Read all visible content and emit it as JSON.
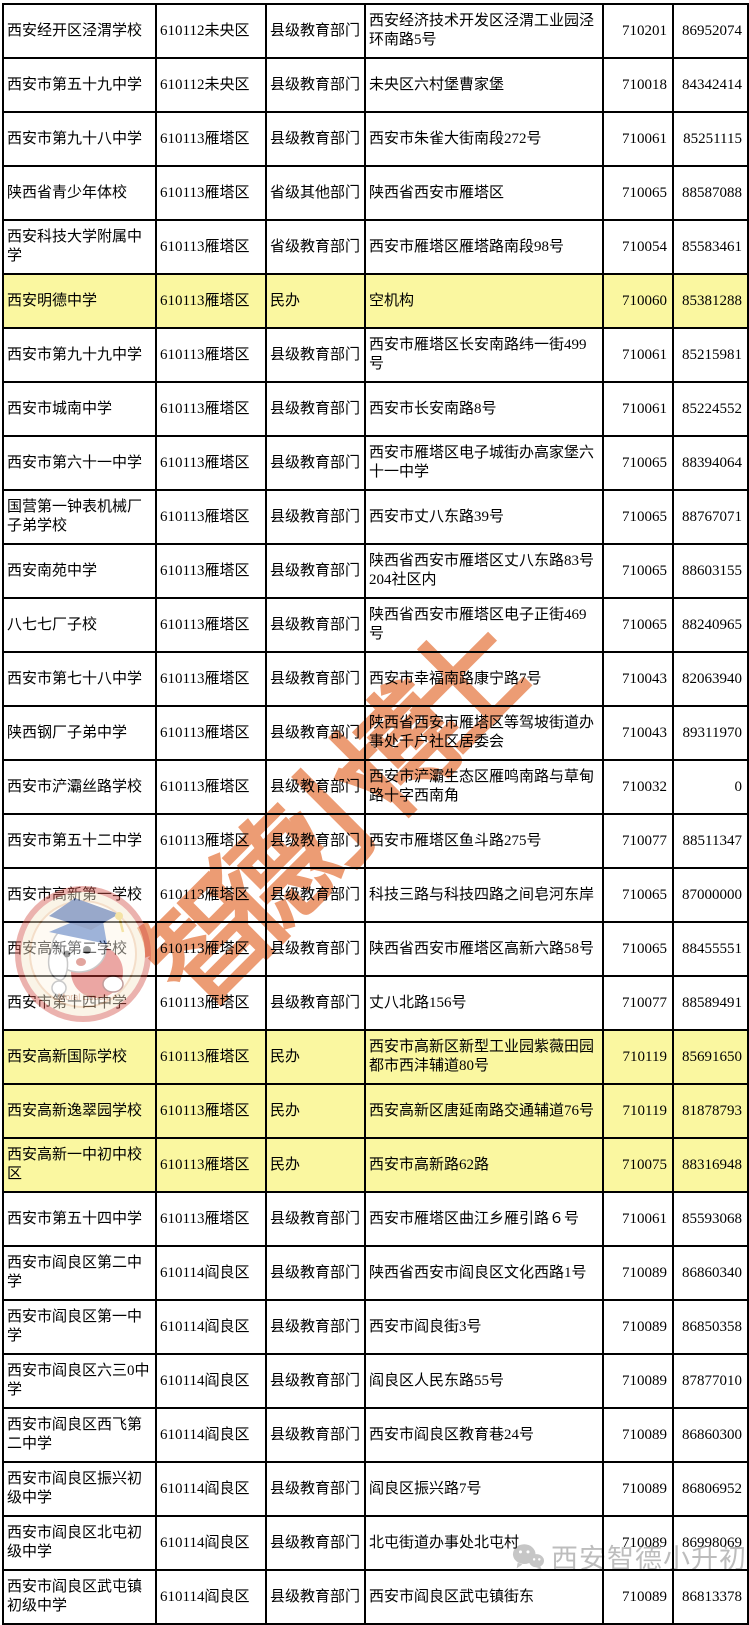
{
  "table": {
    "column_keys": [
      "school_name",
      "district_code",
      "management",
      "address",
      "postal_code",
      "phone"
    ],
    "rows": [
      {
        "school_name": "西安经开区泾渭学校",
        "district_code": "610112未央区",
        "management": "县级教育部门",
        "address": "西安经济技术开发区泾渭工业园泾环南路5号",
        "postal_code": "710201",
        "phone": "86952074",
        "highlighted": false
      },
      {
        "school_name": "西安市第五十九中学",
        "district_code": "610112未央区",
        "management": "县级教育部门",
        "address": "未央区六村堡曹家堡",
        "postal_code": "710018",
        "phone": "84342414",
        "highlighted": false
      },
      {
        "school_name": "西安市第九十八中学",
        "district_code": "610113雁塔区",
        "management": "县级教育部门",
        "address": "西安市朱雀大街南段272号",
        "postal_code": "710061",
        "phone": "85251115",
        "highlighted": false
      },
      {
        "school_name": "陕西省青少年体校",
        "district_code": "610113雁塔区",
        "management": "省级其他部门",
        "address": "陕西省西安市雁塔区",
        "postal_code": "710065",
        "phone": "88587088",
        "highlighted": false
      },
      {
        "school_name": "西安科技大学附属中学",
        "district_code": "610113雁塔区",
        "management": "省级教育部门",
        "address": "西安市雁塔区雁塔路南段98号",
        "postal_code": "710054",
        "phone": "85583461",
        "highlighted": false
      },
      {
        "school_name": "西安明德中学",
        "district_code": "610113雁塔区",
        "management": "民办",
        "address": "空机构",
        "postal_code": "710060",
        "phone": "85381288",
        "highlighted": true
      },
      {
        "school_name": "西安市第九十九中学",
        "district_code": "610113雁塔区",
        "management": "县级教育部门",
        "address": "西安市雁塔区长安南路纬一街499号",
        "postal_code": "710061",
        "phone": "85215981",
        "highlighted": false
      },
      {
        "school_name": "西安市城南中学",
        "district_code": "610113雁塔区",
        "management": "县级教育部门",
        "address": "西安市长安南路8号",
        "postal_code": "710061",
        "phone": "85224552",
        "highlighted": false
      },
      {
        "school_name": "西安市第六十一中学",
        "district_code": "610113雁塔区",
        "management": "县级教育部门",
        "address": "西安市雁塔区电子城街办高家堡六十一中学",
        "postal_code": "710065",
        "phone": "88394064",
        "highlighted": false
      },
      {
        "school_name": "国营第一钟表机械厂子弟学校",
        "district_code": "610113雁塔区",
        "management": "县级教育部门",
        "address": "西安市丈八东路39号",
        "postal_code": "710065",
        "phone": "88767071",
        "highlighted": false
      },
      {
        "school_name": "西安南苑中学",
        "district_code": "610113雁塔区",
        "management": "县级教育部门",
        "address": "陕西省西安市雁塔区丈八东路83号204社区内",
        "postal_code": "710065",
        "phone": "88603155",
        "highlighted": false
      },
      {
        "school_name": "八七七厂子校",
        "district_code": "610113雁塔区",
        "management": "县级教育部门",
        "address": "陕西省西安市雁塔区电子正街469号",
        "postal_code": "710065",
        "phone": "88240965",
        "highlighted": false
      },
      {
        "school_name": "西安市第七十八中学",
        "district_code": "610113雁塔区",
        "management": "县级教育部门",
        "address": "西安市幸福南路康宁路7号",
        "postal_code": "710043",
        "phone": "82063940",
        "highlighted": false
      },
      {
        "school_name": "陕西钢厂子弟中学",
        "district_code": "610113雁塔区",
        "management": "县级教育部门",
        "address": "陕西省西安市雁塔区等驾坡街道办事处千户社区居委会",
        "postal_code": "710043",
        "phone": "89311970",
        "highlighted": false
      },
      {
        "school_name": "西安市浐灞丝路学校",
        "district_code": "610113雁塔区",
        "management": "县级教育部门",
        "address": "西安市浐灞生态区雁鸣南路与草甸路十字西南角",
        "postal_code": "710032",
        "phone": "0",
        "highlighted": false
      },
      {
        "school_name": "西安市第五十二中学",
        "district_code": "610113雁塔区",
        "management": "县级教育部门",
        "address": "西安市雁塔区鱼斗路275号",
        "postal_code": "710077",
        "phone": "88511347",
        "highlighted": false
      },
      {
        "school_name": "西安市高新第一学校",
        "district_code": "610113雁塔区",
        "management": "县级教育部门",
        "address": "科技三路与科技四路之间皂河东岸",
        "postal_code": "710065",
        "phone": "87000000",
        "highlighted": false
      },
      {
        "school_name": "西安高新第二学校",
        "district_code": "610113雁塔区",
        "management": "县级教育部门",
        "address": "陕西省西安市雁塔区高新六路58号",
        "postal_code": "710065",
        "phone": "88455551",
        "highlighted": false
      },
      {
        "school_name": "西安市第十四中学",
        "district_code": "610113雁塔区",
        "management": "县级教育部门",
        "address": "丈八北路156号",
        "postal_code": "710077",
        "phone": "88589491",
        "highlighted": false
      },
      {
        "school_name": "西安高新国际学校",
        "district_code": "610113雁塔区",
        "management": "民办",
        "address": "西安市高新区新型工业园紫薇田园都市西沣辅道80号",
        "postal_code": "710119",
        "phone": "85691650",
        "highlighted": true
      },
      {
        "school_name": "西安高新逸翠园学校",
        "district_code": "610113雁塔区",
        "management": "民办",
        "address": "西安高新区唐延南路交通辅道76号",
        "postal_code": "710119",
        "phone": "81878793",
        "highlighted": true
      },
      {
        "school_name": "西安高新一中初中校区",
        "district_code": "610113雁塔区",
        "management": "民办",
        "address": "西安市高新路62路",
        "postal_code": "710075",
        "phone": "88316948",
        "highlighted": true
      },
      {
        "school_name": "西安市第五十四中学",
        "district_code": "610113雁塔区",
        "management": "县级教育部门",
        "address": "西安市雁塔区曲江乡雁引路６号",
        "postal_code": "710061",
        "phone": "85593068",
        "highlighted": false
      },
      {
        "school_name": "西安市阎良区第二中学",
        "district_code": "610114阎良区",
        "management": "县级教育部门",
        "address": "陕西省西安市阎良区文化西路1号",
        "postal_code": "710089",
        "phone": "86860340",
        "highlighted": false
      },
      {
        "school_name": "西安市阎良区第一中学",
        "district_code": "610114阎良区",
        "management": "县级教育部门",
        "address": "西安市阎良街3号",
        "postal_code": "710089",
        "phone": "86850358",
        "highlighted": false
      },
      {
        "school_name": "西安市阎良区六三0中学",
        "district_code": "610114阎良区",
        "management": "县级教育部门",
        "address": "阎良区人民东路55号",
        "postal_code": "710089",
        "phone": "87877010",
        "highlighted": false
      },
      {
        "school_name": "西安市阎良区西飞第二中学",
        "district_code": "610114阎良区",
        "management": "县级教育部门",
        "address": "西安市阎良区教育巷24号",
        "postal_code": "710089",
        "phone": "86860300",
        "highlighted": false
      },
      {
        "school_name": "西安市阎良区振兴初级中学",
        "district_code": "610114阎良区",
        "management": "县级教育部门",
        "address": "阎良区振兴路7号",
        "postal_code": "710089",
        "phone": "86806952",
        "highlighted": false
      },
      {
        "school_name": "西安市阎良区北屯初级中学",
        "district_code": "610114阎良区",
        "management": "县级教育部门",
        "address": "北屯街道办事处北屯村",
        "postal_code": "710089",
        "phone": "86998069",
        "highlighted": false
      },
      {
        "school_name": "西安市阎良区武屯镇初级中学",
        "district_code": "610114阎良区",
        "management": "县级教育部门",
        "address": "西安市阎良区武屯镇街东",
        "postal_code": "710089",
        "phone": "86813378",
        "highlighted": false
      }
    ]
  },
  "watermarks": {
    "diagonal_text": "智德小博士",
    "diagonal_color": "#EC9C74",
    "footer_text": "西安智德小升初",
    "footer_color": "#BDBDBD",
    "logo_icon": "mascot-badge-icon",
    "footer_icon": "wechat-icon"
  },
  "colors": {
    "highlight_row": "#FAF7A0",
    "table_border": "#000000",
    "background": "#FFFFFF"
  }
}
